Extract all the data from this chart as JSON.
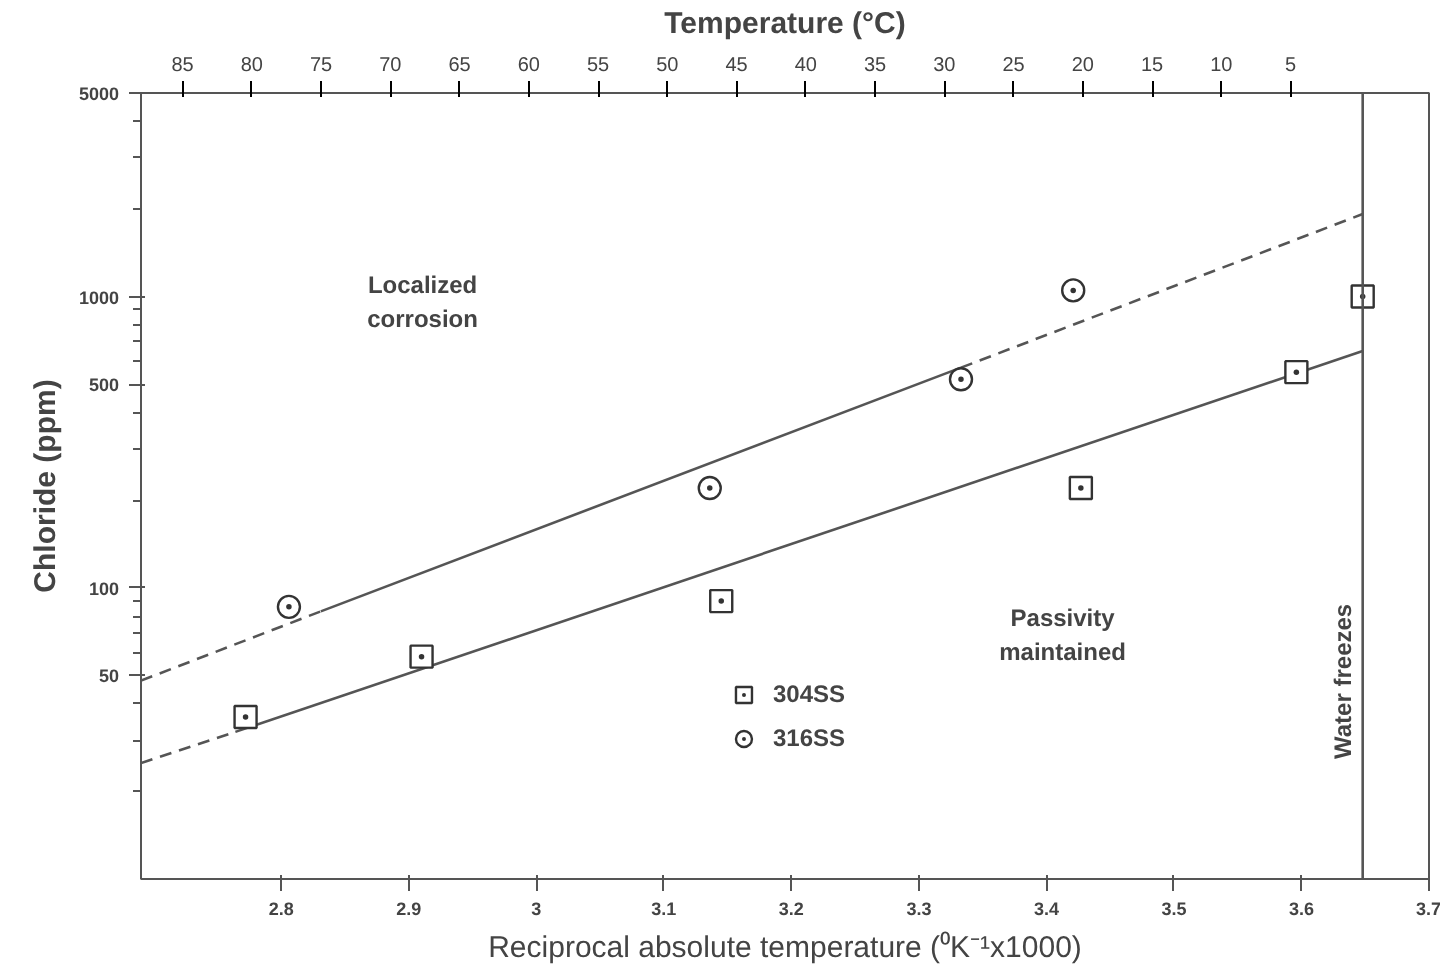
{
  "chart_data": {
    "type": "scatter",
    "x2label": "Temperature (°C)",
    "xlabel": "Reciprocal absolute temperature (⁰K⁻¹x1000)",
    "ylabel": "Chloride (ppm)",
    "xlim": [
      2.69,
      3.7
    ],
    "xticks": [
      2.8,
      2.9,
      3.0,
      3.1,
      3.2,
      3.3,
      3.4,
      3.5,
      3.6,
      3.7
    ],
    "x2lim": [
      88,
      -5
    ],
    "x2ticks": [
      85,
      80,
      75,
      70,
      65,
      60,
      55,
      50,
      45,
      40,
      35,
      30,
      25,
      20,
      15,
      10,
      5
    ],
    "ylim": [
      10,
      5000
    ],
    "yticks": [
      50,
      100,
      500,
      1000,
      5000
    ],
    "log": "y",
    "grid": false,
    "legend": "bottom",
    "series": [
      {
        "type": "line",
        "color": "#555555",
        "line_style": "dashed",
        "x": [
          2.69,
          2.831
        ],
        "values": [
          48,
          83
        ]
      },
      {
        "type": "line",
        "color": "#555555",
        "line_style": "solid",
        "x": [
          2.831,
          3.333
        ],
        "values": [
          83,
          570
        ]
      },
      {
        "type": "line",
        "color": "#555555",
        "line_style": "dashed",
        "x": [
          3.333,
          3.648
        ],
        "values": [
          570,
          1920
        ]
      },
      {
        "type": "line",
        "color": "#555555",
        "line_style": "dashed",
        "x": [
          2.69,
          2.764
        ],
        "values": [
          25,
          32
        ]
      },
      {
        "type": "line",
        "color": "#555555",
        "line_style": "solid",
        "x": [
          2.764,
          3.648
        ],
        "values": [
          32,
          650
        ]
      },
      {
        "name": "304SS",
        "color": "#333333",
        "marker": "square",
        "x": [
          2.772,
          2.91,
          3.145,
          3.427,
          3.596,
          3.648
        ],
        "values": [
          36,
          58,
          90,
          220,
          550,
          1000
        ]
      },
      {
        "name": "316SS",
        "color": "#333333",
        "marker": "circle",
        "x": [
          2.806,
          3.136,
          3.333,
          3.421
        ],
        "values": [
          86,
          220,
          520,
          1050
        ]
      }
    ],
    "ref_lines": [
      {
        "axis": "x",
        "value": 3.648,
        "label": "Water freezes",
        "color": "#555555"
      }
    ],
    "annotations": [
      "Localized\ncorrosion",
      "Passivity\nmaintained"
    ]
  }
}
